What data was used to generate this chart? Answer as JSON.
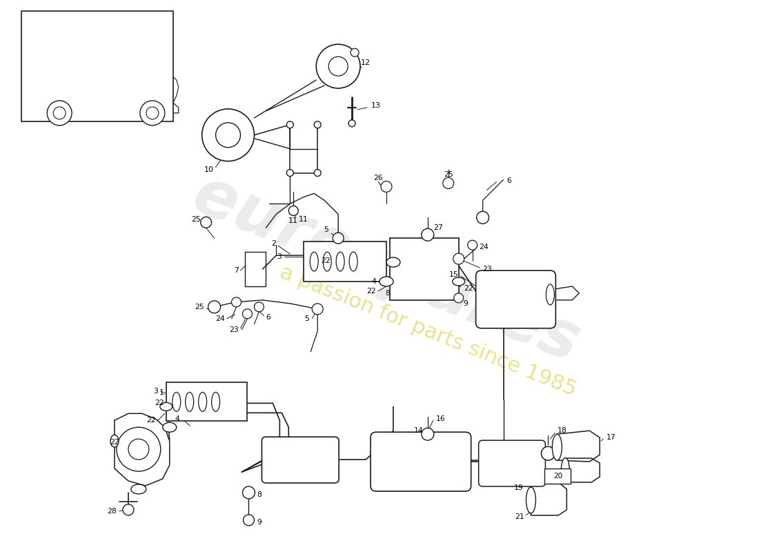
{
  "bg_color": "#ffffff",
  "lc": "#1a1a1a",
  "wm1": "eurospares",
  "wm2": "a passion for parts since 1985",
  "wm1_color": "#cccccc",
  "wm2_color": "#d4cc30",
  "wm1_size": 68,
  "wm2_size": 22,
  "wm1_alpha": 0.38,
  "wm2_alpha": 0.55,
  "wm_rotation": -22
}
